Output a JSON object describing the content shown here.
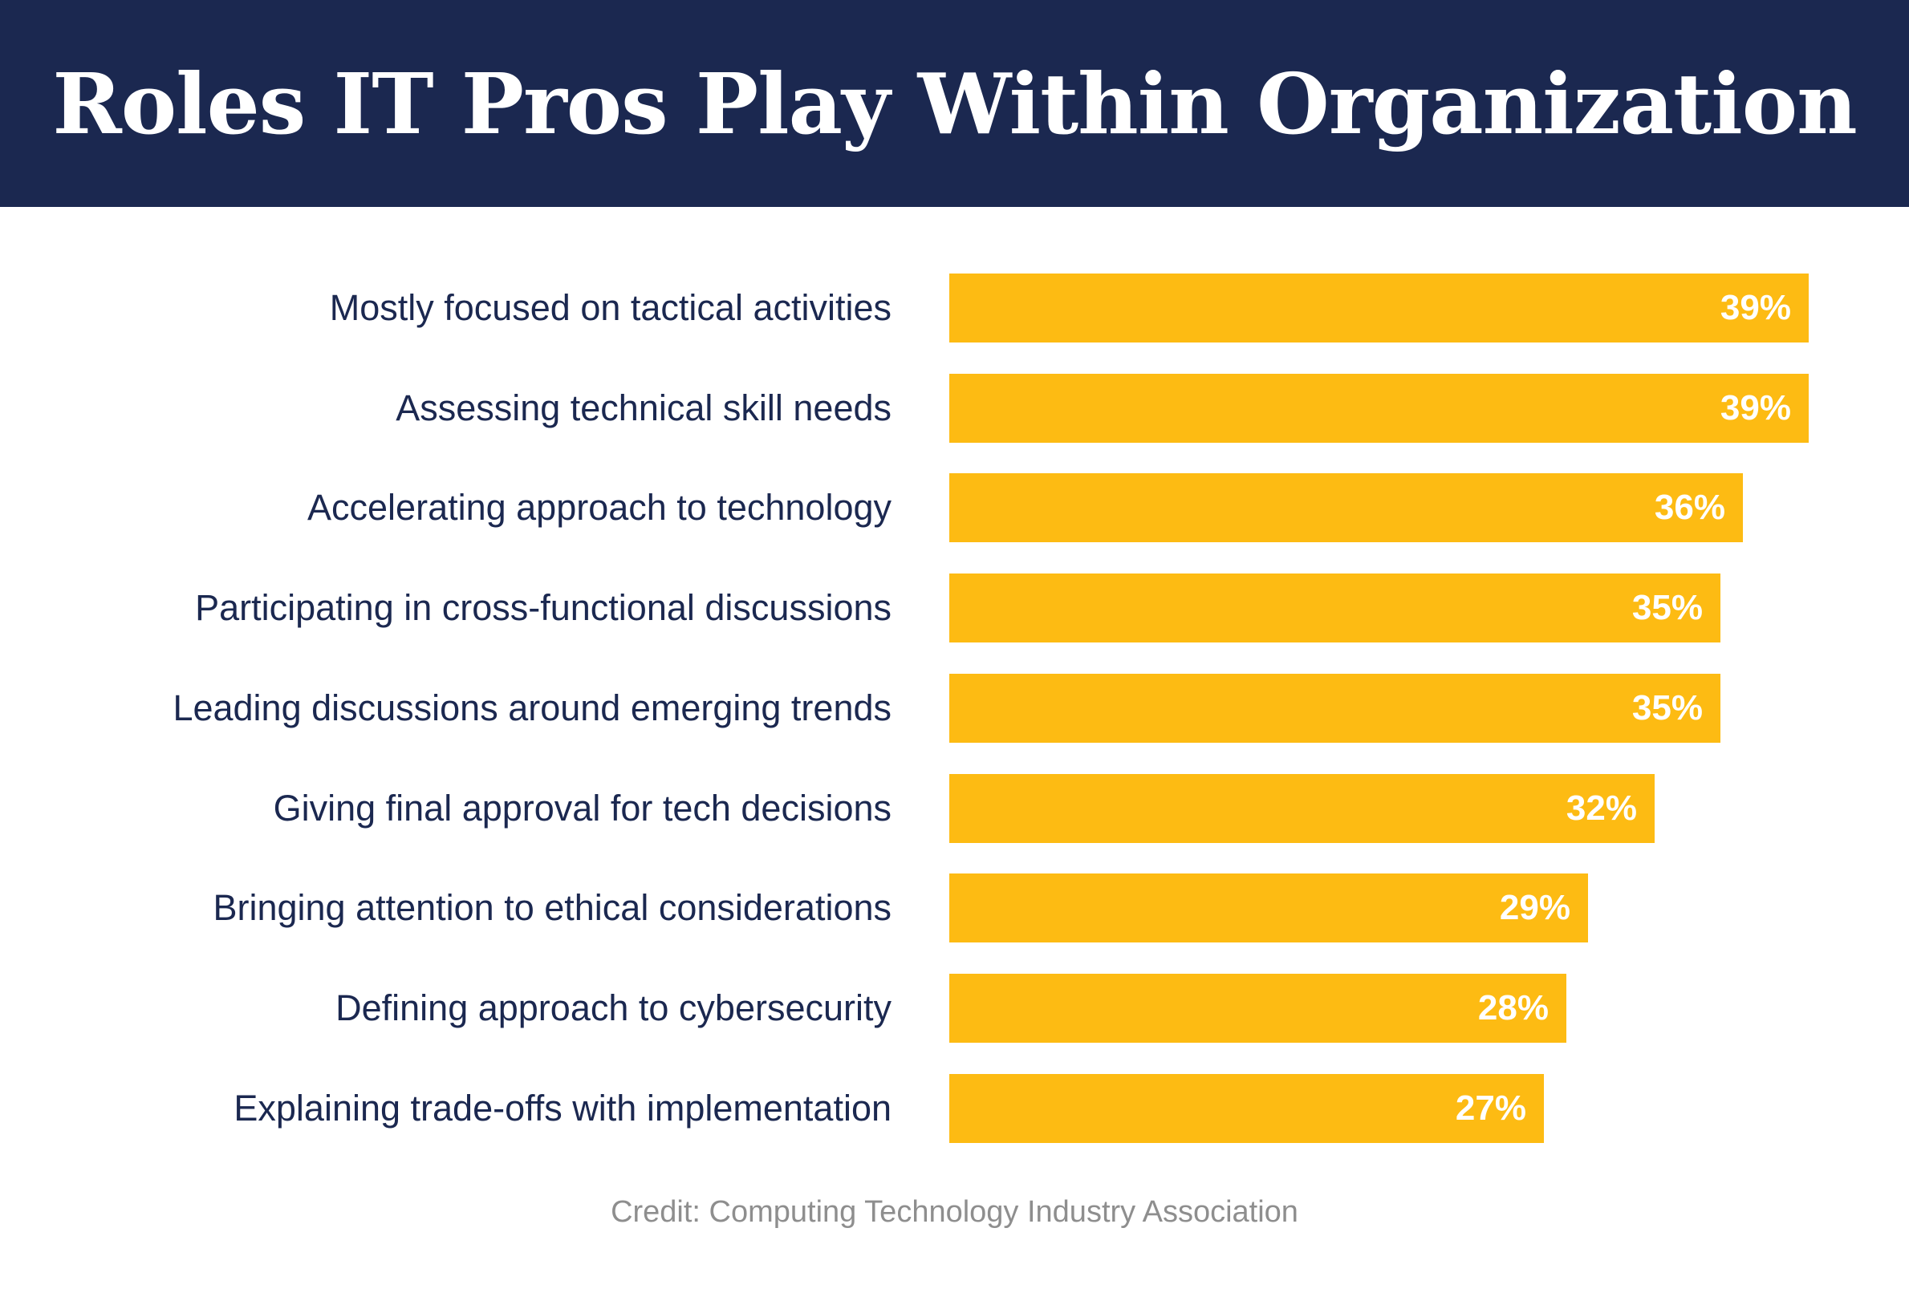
{
  "header": {
    "title": "Roles IT Pros Play Within Organization"
  },
  "chart_data": {
    "type": "bar",
    "orientation": "horizontal",
    "title": "Roles IT Pros Play Within Organization",
    "categories": [
      "Mostly focused on tactical activities",
      "Assessing technical skill needs",
      "Accelerating approach to technology",
      "Participating in cross-functional discussions",
      "Leading discussions around emerging trends",
      "Giving final approval for tech decisions",
      "Bringing attention to ethical considerations",
      "Defining approach to cybersecurity",
      "Explaining trade-offs with implementation"
    ],
    "values": [
      39,
      39,
      36,
      35,
      35,
      32,
      29,
      28,
      27
    ],
    "value_labels": [
      "39%",
      "39%",
      "36%",
      "35%",
      "35%",
      "32%",
      "29%",
      "28%",
      "27%"
    ],
    "xlim": [
      0,
      39
    ],
    "grid": false,
    "legend": "none",
    "colors": {
      "bar": "#fdbb13",
      "value_label": "#ffffff",
      "category_label": "#1b2850",
      "header_background": "#1b2850"
    }
  },
  "footer": {
    "credit": "Credit: Computing Technology Industry Association"
  }
}
